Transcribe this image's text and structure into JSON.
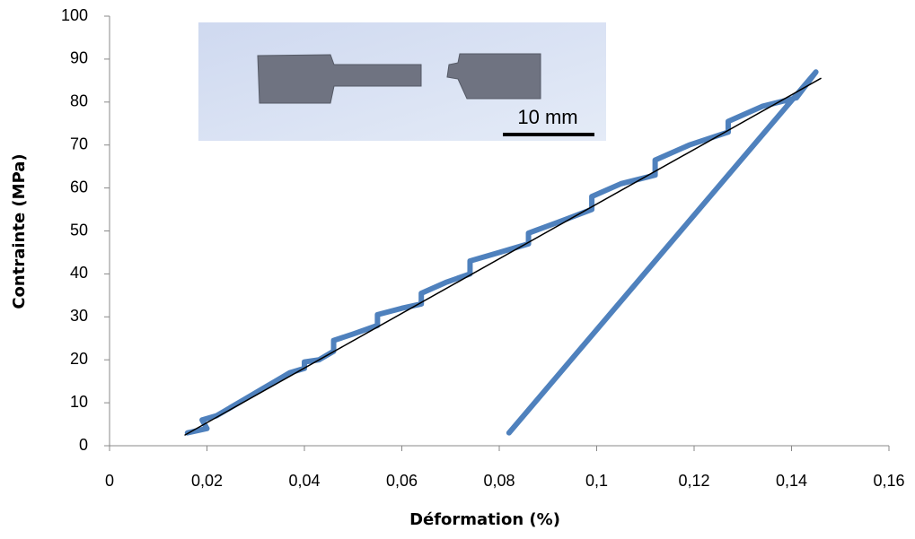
{
  "chart_data": {
    "type": "line",
    "x_label": "Déformation (%)",
    "y_label": "Contrainte (MPa)",
    "annotation": "10 mm",
    "series": [
      {
        "color": "#4f81bd",
        "x": [
          0.016,
          0.02,
          0.019,
          0.022,
          0.025,
          0.028,
          0.031,
          0.034,
          0.037,
          0.04,
          0.04,
          0.043,
          0.046,
          0.046,
          0.05,
          0.055,
          0.055,
          0.06,
          0.064,
          0.064,
          0.069,
          0.074,
          0.074,
          0.08,
          0.086,
          0.086,
          0.092,
          0.099,
          0.099,
          0.105,
          0.112,
          0.112,
          0.119,
          0.127,
          0.127,
          0.134,
          0.141,
          0.145,
          0.082
        ],
        "values": [
          3,
          4,
          6,
          7,
          9,
          11,
          13,
          15,
          17,
          18,
          19.5,
          20,
          22,
          24.5,
          26,
          28,
          30.5,
          32,
          33,
          35.5,
          38,
          40,
          43,
          45,
          47,
          49.5,
          52,
          55,
          58,
          61,
          63,
          66.5,
          70,
          73,
          75.5,
          79,
          81,
          87,
          3
        ]
      },
      {
        "color": "#000000",
        "x": [
          0.0155,
          0.146
        ],
        "values": [
          2.5,
          85.5
        ]
      }
    ],
    "xlim": [
      0,
      0.16
    ],
    "xticks": [
      0,
      {
        "value": 0.02,
        "label": "0,02"
      },
      {
        "value": 0.04,
        "label": "0,04"
      },
      {
        "value": 0.06,
        "label": "0,06"
      },
      {
        "value": 0.08,
        "label": "0,08"
      },
      {
        "value": 0.1,
        "label": "0,1"
      },
      {
        "value": 0.12,
        "label": "0,12"
      },
      {
        "value": 0.14,
        "label": "0,14"
      },
      {
        "value": 0.16,
        "label": "0,16"
      }
    ],
    "ylim": [
      0,
      100
    ],
    "yticks": [
      0,
      10,
      20,
      30,
      40,
      50,
      60,
      70,
      80,
      90,
      100
    ],
    "grid": false
  }
}
